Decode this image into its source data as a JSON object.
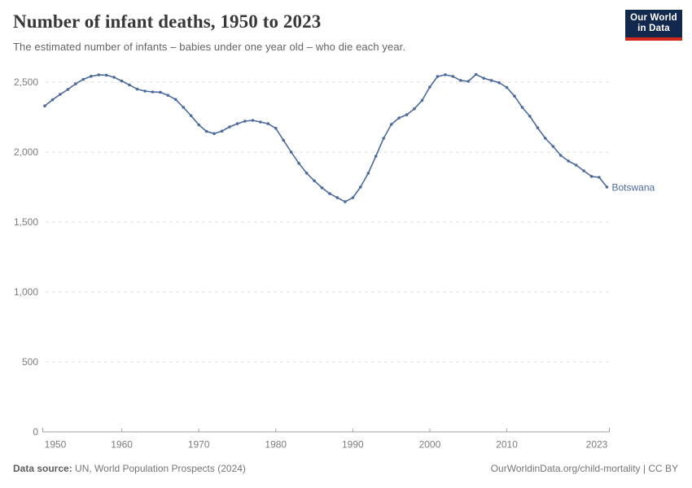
{
  "header": {
    "title": "Number of infant deaths, 1950 to 2023",
    "subtitle": "The estimated number of infants – babies under one year old – who die each year.",
    "logo": {
      "line1": "Our World",
      "line2": "in Data"
    }
  },
  "footer": {
    "data_source_label": "Data source:",
    "data_source_value": " UN, World Population Prospects (2024)",
    "attribution": "OurWorldinData.org/child-mortality | CC BY"
  },
  "colors": {
    "line": "#4c6a9c",
    "entity_label": "#4c6a9c",
    "grid": "#dddddd",
    "axis": "#a0a0a0",
    "tick_text": "#7c7c7c",
    "logo_bg": "#12294d",
    "logo_bar": "#d0281d"
  },
  "chart_data": {
    "type": "line",
    "title": "Number of infant deaths, 1950 to 2023",
    "entity": "Botswana",
    "xlabel": "",
    "ylabel": "",
    "x_range": [
      1950,
      2023
    ],
    "ylim": [
      0,
      2500
    ],
    "grid": "horizontal dashed",
    "legend_position": "line-end label",
    "point_markers": true,
    "x_ticks": [
      1950,
      1960,
      1970,
      1980,
      1990,
      2000,
      2010,
      2023
    ],
    "y_ticks": [
      0,
      500,
      1000,
      1500,
      2000,
      2500
    ],
    "y_tick_labels": [
      "0",
      "500",
      "1,000",
      "1,500",
      "2,000",
      "2,500"
    ],
    "years": [
      1950,
      1951,
      1952,
      1953,
      1954,
      1955,
      1956,
      1957,
      1958,
      1959,
      1960,
      1961,
      1962,
      1963,
      1964,
      1965,
      1966,
      1967,
      1968,
      1969,
      1970,
      1971,
      1972,
      1973,
      1974,
      1975,
      1976,
      1977,
      1978,
      1979,
      1980,
      1981,
      1982,
      1983,
      1984,
      1985,
      1986,
      1987,
      1988,
      1989,
      1990,
      1991,
      1992,
      1993,
      1994,
      1995,
      1996,
      1997,
      1998,
      1999,
      2000,
      2001,
      2002,
      2003,
      2004,
      2005,
      2006,
      2007,
      2008,
      2009,
      2010,
      2011,
      2012,
      2013,
      2014,
      2015,
      2016,
      2017,
      2018,
      2019,
      2020,
      2021,
      2022,
      2023
    ],
    "values": [
      2330,
      2374,
      2413,
      2448,
      2488,
      2520,
      2542,
      2552,
      2550,
      2535,
      2508,
      2480,
      2450,
      2436,
      2430,
      2428,
      2406,
      2376,
      2320,
      2260,
      2195,
      2148,
      2132,
      2150,
      2180,
      2203,
      2221,
      2227,
      2215,
      2203,
      2170,
      2085,
      2000,
      1920,
      1850,
      1795,
      1745,
      1703,
      1674,
      1645,
      1674,
      1750,
      1849,
      1971,
      2099,
      2198,
      2244,
      2267,
      2310,
      2370,
      2465,
      2540,
      2553,
      2541,
      2512,
      2506,
      2555,
      2528,
      2512,
      2496,
      2462,
      2400,
      2320,
      2256,
      2174,
      2099,
      2041,
      1977,
      1936,
      1907,
      1866,
      1826,
      1820,
      1750
    ]
  }
}
